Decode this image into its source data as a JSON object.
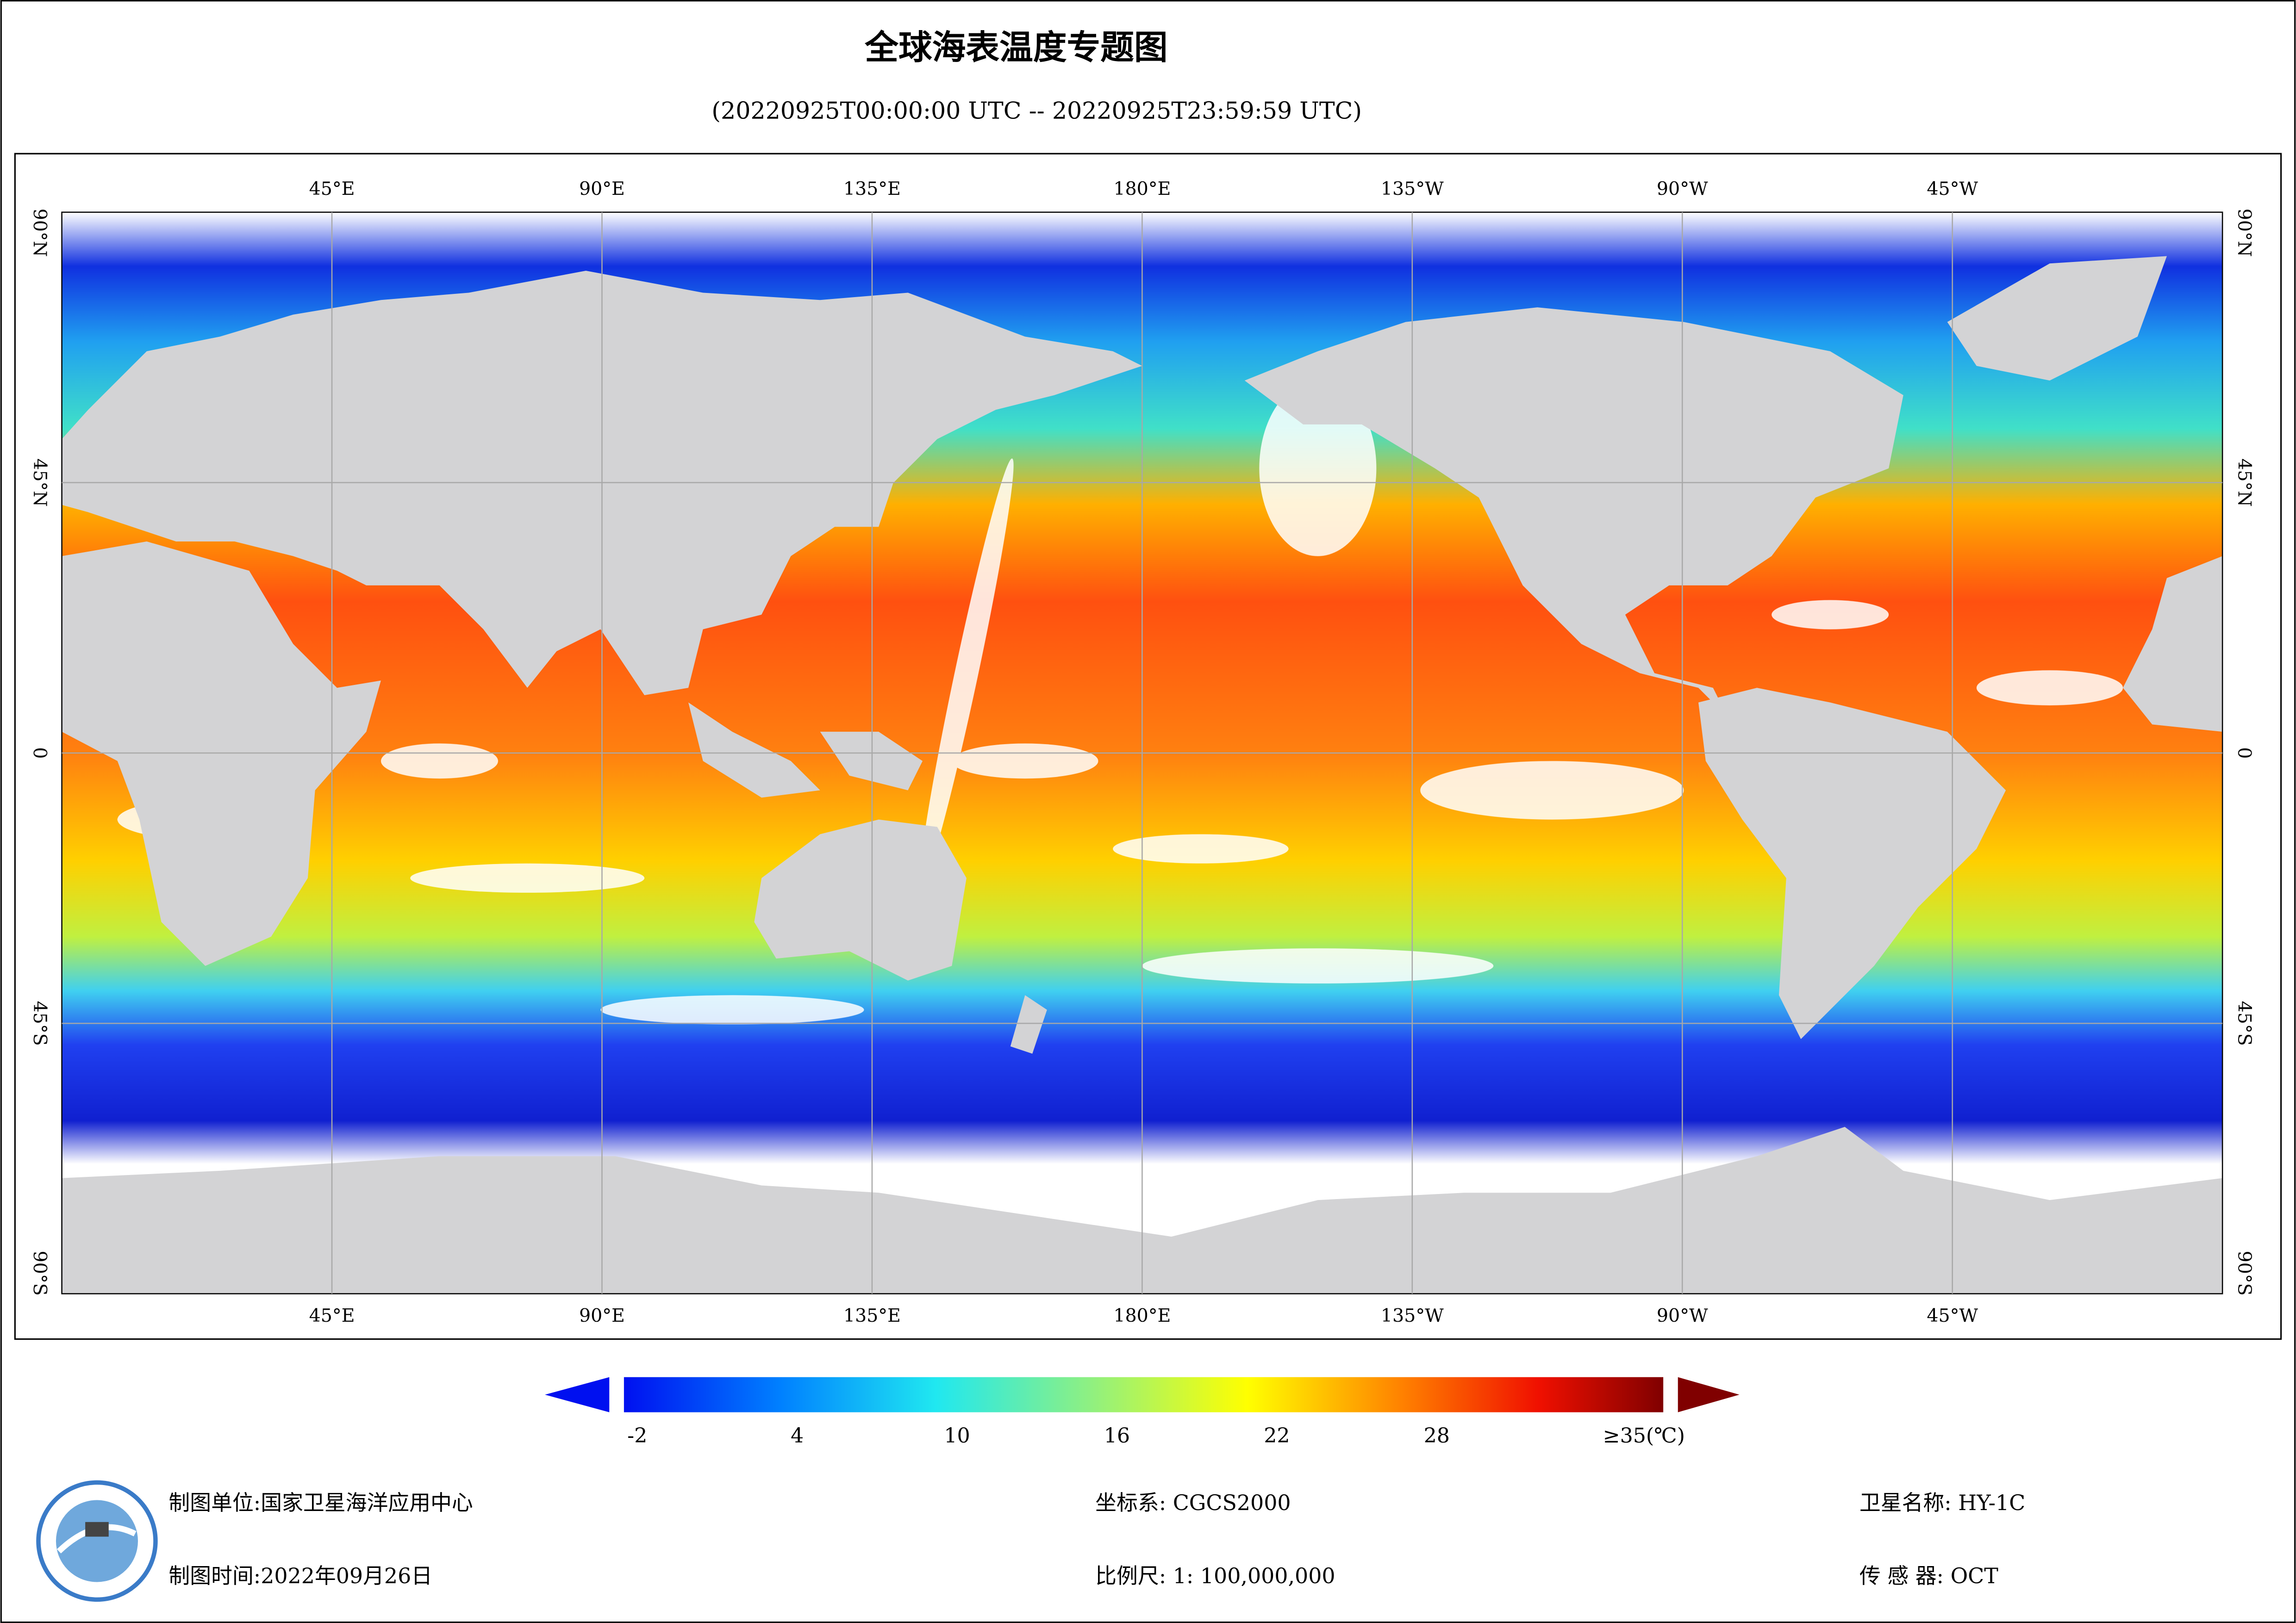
{
  "title": "全球海表温度专题图",
  "subtitle": "(20220925T00:00:00 UTC -- 20220925T23:59:59 UTC)",
  "map": {
    "lon_range": [
      0,
      360
    ],
    "lat_range": [
      -90,
      90
    ],
    "lon_ticks": [
      {
        "value": 45,
        "label": "45°E"
      },
      {
        "value": 90,
        "label": "90°E"
      },
      {
        "value": 135,
        "label": "135°E"
      },
      {
        "value": 180,
        "label": "180°E"
      },
      {
        "value": -135,
        "label": "135°W"
      },
      {
        "value": -90,
        "label": "90°W"
      },
      {
        "value": -45,
        "label": "45°W"
      }
    ],
    "lat_ticks": [
      {
        "value": 90,
        "label": "90°N"
      },
      {
        "value": 45,
        "label": "45°N"
      },
      0,
      {
        "value": -45,
        "label": "45°S"
      },
      {
        "value": -90,
        "label": "90°S"
      }
    ]
  },
  "colorbar": {
    "range": [
      -2.5,
      36.5
    ],
    "ticks": [
      -2,
      4,
      10,
      16,
      22,
      28,
      {
        "value": 35,
        "label": "≥35(℃)"
      }
    ]
  },
  "footer": {
    "left": [
      "制图单位:国家卫星海洋应用中心",
      "制图时间:2022年09月26日"
    ],
    "center": [
      "坐标系: CGCS2000",
      "比例尺: 1: 100,000,000"
    ],
    "right": [
      "卫星名称: HY-1C",
      "传 感 器: OCT"
    ]
  }
}
